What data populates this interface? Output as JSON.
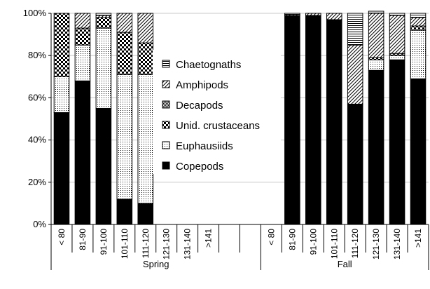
{
  "chart_data": {
    "type": "bar",
    "stacked": true,
    "percent": true,
    "title": "",
    "xlabel": "",
    "ylabel": "",
    "ylim": [
      0,
      100
    ],
    "y_ticks": [
      "0%",
      "20%",
      "40%",
      "60%",
      "80%",
      "100%"
    ],
    "grid": "horizontal",
    "legend_position": "center-left",
    "groups": [
      {
        "name": "Spring",
        "categories": [
          "< 80",
          "81-90",
          "91-100",
          "101-110",
          "111-120",
          "121-130",
          "131-140",
          ">141",
          "",
          ""
        ]
      },
      {
        "name": "Fall",
        "categories": [
          "< 80",
          "81-90",
          "91-100",
          "101-110",
          "111-120",
          "121-130",
          "131-140",
          ">141"
        ]
      }
    ],
    "series": [
      {
        "name": "Copepods",
        "pattern": "solid-black",
        "values": [
          53,
          68,
          55,
          12,
          10,
          0,
          0,
          0,
          0,
          0,
          0,
          99,
          99,
          97,
          57,
          73,
          78,
          69
        ]
      },
      {
        "name": "Euphausiids",
        "pattern": "fine-dots",
        "values": [
          17,
          17,
          38,
          59,
          61,
          0,
          0,
          0,
          0,
          0,
          0,
          0,
          0,
          0,
          0,
          5,
          2,
          23
        ]
      },
      {
        "name": "Unid. crustaceans",
        "pattern": "checker",
        "values": [
          30,
          8,
          5,
          20,
          15,
          0,
          0,
          0,
          0,
          0,
          0,
          0,
          0,
          0,
          0,
          1,
          1,
          2
        ]
      },
      {
        "name": "Decapods",
        "pattern": "fine-checker",
        "values": [
          0,
          0,
          0,
          0,
          0,
          0,
          0,
          0,
          0,
          0,
          0,
          0,
          0,
          0,
          0,
          0,
          0,
          0
        ]
      },
      {
        "name": "Amphipods",
        "pattern": "diagonal",
        "values": [
          0,
          7,
          1,
          9,
          14,
          0,
          0,
          0,
          0,
          0,
          0,
          0.5,
          1,
          3,
          28,
          21,
          18,
          4
        ]
      },
      {
        "name": "Chaetognaths",
        "pattern": "horizontal-lines",
        "values": [
          0,
          0,
          1,
          0,
          0,
          0,
          0,
          0,
          0,
          0,
          0,
          0.5,
          0,
          0,
          15,
          1,
          1,
          2
        ]
      }
    ],
    "legend_order": [
      "Chaetognaths",
      "Amphipods",
      "Decapods",
      "Unid. crustaceans",
      "Euphausiids",
      "Copepods"
    ]
  }
}
